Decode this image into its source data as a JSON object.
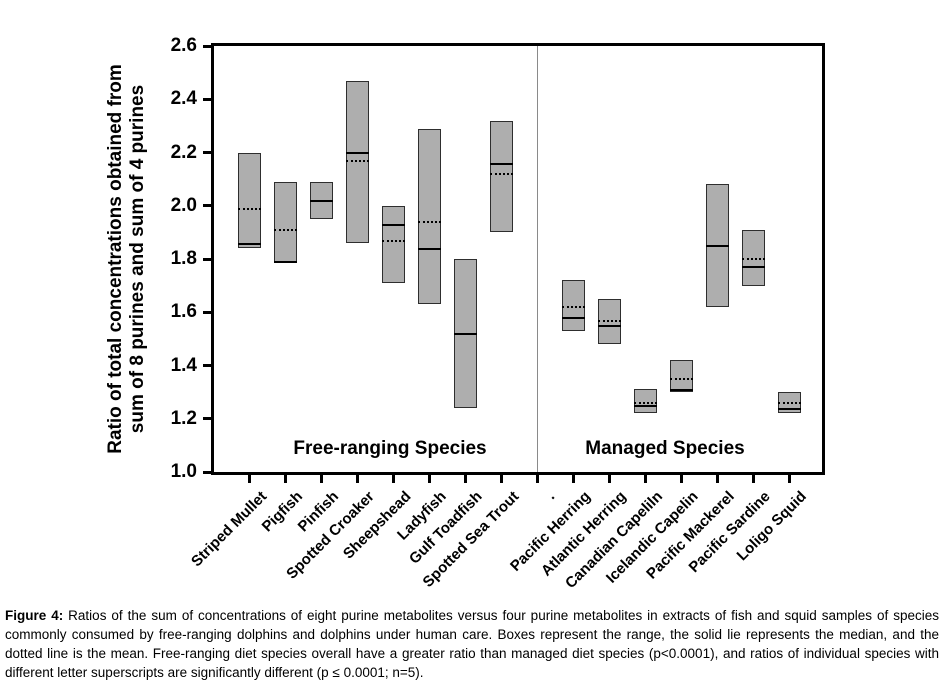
{
  "chart_data": {
    "type": "box",
    "title": "",
    "ylabel": "Ratio of total concentrations obtained from sum of 8 purines and sum of 4 purines",
    "ylabel_lines": [
      "Ratio of total concentrations obtained from",
      "sum of 8 purines and sum of 4 purines"
    ],
    "ylim": [
      1.0,
      2.6
    ],
    "y_ticks": [
      "2.6",
      "2.4",
      "2.2",
      "2.0",
      "1.8",
      "1.6",
      "1.4",
      "1.2",
      "1.0"
    ],
    "y_tick_values": [
      2.6,
      2.4,
      2.2,
      2.0,
      1.8,
      1.6,
      1.4,
      1.2,
      1.0
    ],
    "grid": false,
    "legend_position": "none",
    "group_labels": [
      "Free-ranging Species",
      "Managed Species"
    ],
    "categories": [
      "Striped Mullet",
      "Pigfish",
      "Pinfish",
      "Spotted Croaker",
      "Sheepshead",
      "Ladyfish",
      "Gulf Toadfish",
      "Spotted Sea Trout",
      ".",
      "Pacific Herring",
      "Atlantic Herring",
      "Canadian Capeliln",
      "Icelandic Capelin",
      "Pacific Mackerel",
      "Pacific Sardine",
      "Loligo Squid"
    ],
    "boxes": [
      {
        "label": "Striped Mullet",
        "group": "free-ranging",
        "min": 1.84,
        "max": 2.2,
        "median": 1.86,
        "mean": 1.99
      },
      {
        "label": "Pigfish",
        "group": "free-ranging",
        "min": 1.79,
        "max": 2.09,
        "median": 1.79,
        "mean": 1.91
      },
      {
        "label": "Pinfish",
        "group": "free-ranging",
        "min": 1.95,
        "max": 2.09,
        "median": 2.02,
        "mean": 2.02
      },
      {
        "label": "Spotted Croaker",
        "group": "free-ranging",
        "min": 1.86,
        "max": 2.47,
        "median": 2.2,
        "mean": 2.17
      },
      {
        "label": "Sheepshead",
        "group": "free-ranging",
        "min": 1.71,
        "max": 2.0,
        "median": 1.93,
        "mean": 1.87
      },
      {
        "label": "Ladyfish",
        "group": "free-ranging",
        "min": 1.63,
        "max": 2.29,
        "median": 1.84,
        "mean": 1.94
      },
      {
        "label": "Gulf Toadfish",
        "group": "free-ranging",
        "min": 1.24,
        "max": 1.8,
        "median": 1.52,
        "mean": 1.52
      },
      {
        "label": "Spotted Sea Trout",
        "group": "free-ranging",
        "min": 1.9,
        "max": 2.32,
        "median": 2.16,
        "mean": 2.12
      },
      {
        "label": ".",
        "group": "separator",
        "min": null,
        "max": null,
        "median": null,
        "mean": null
      },
      {
        "label": "Pacific Herring",
        "group": "managed",
        "min": 1.53,
        "max": 1.72,
        "median": 1.58,
        "mean": 1.62
      },
      {
        "label": "Atlantic Herring",
        "group": "managed",
        "min": 1.48,
        "max": 1.65,
        "median": 1.55,
        "mean": 1.57
      },
      {
        "label": "Canadian Capeliln",
        "group": "managed",
        "min": 1.22,
        "max": 1.31,
        "median": 1.25,
        "mean": 1.26
      },
      {
        "label": "Icelandic Capelin",
        "group": "managed",
        "min": 1.3,
        "max": 1.42,
        "median": 1.31,
        "mean": 1.35
      },
      {
        "label": "Pacific Mackerel",
        "group": "managed",
        "min": 1.62,
        "max": 2.08,
        "median": 1.85,
        "mean": 1.85
      },
      {
        "label": "Pacific Sardine",
        "group": "managed",
        "min": 1.7,
        "max": 1.91,
        "median": 1.77,
        "mean": 1.8
      },
      {
        "label": "Loligo Squid",
        "group": "managed",
        "min": 1.22,
        "max": 1.3,
        "median": 1.24,
        "mean": 1.26
      }
    ]
  },
  "colors": {
    "box_fill": "#aeaeae",
    "box_border": "#2e2e2e",
    "median_line": "#000000",
    "mean_line": "#000000",
    "separator_line": "#8a8a8a",
    "axis": "#000000",
    "text": "#000000"
  },
  "caption": {
    "label": "Figure 4:",
    "text": " Ratios of the sum of concentrations of eight purine metabolites versus four purine metabolites in extracts of fish and squid samples of species commonly consumed by free-ranging dolphins and dolphins under human care. Boxes represent the range, the solid lie represents the median, and the dotted line is the mean. Free-ranging diet species overall have a greater ratio than managed diet species (p<0.0001), and ratios of individual species with different letter superscripts are significantly different (p ≤ 0.0001; n=5)."
  }
}
